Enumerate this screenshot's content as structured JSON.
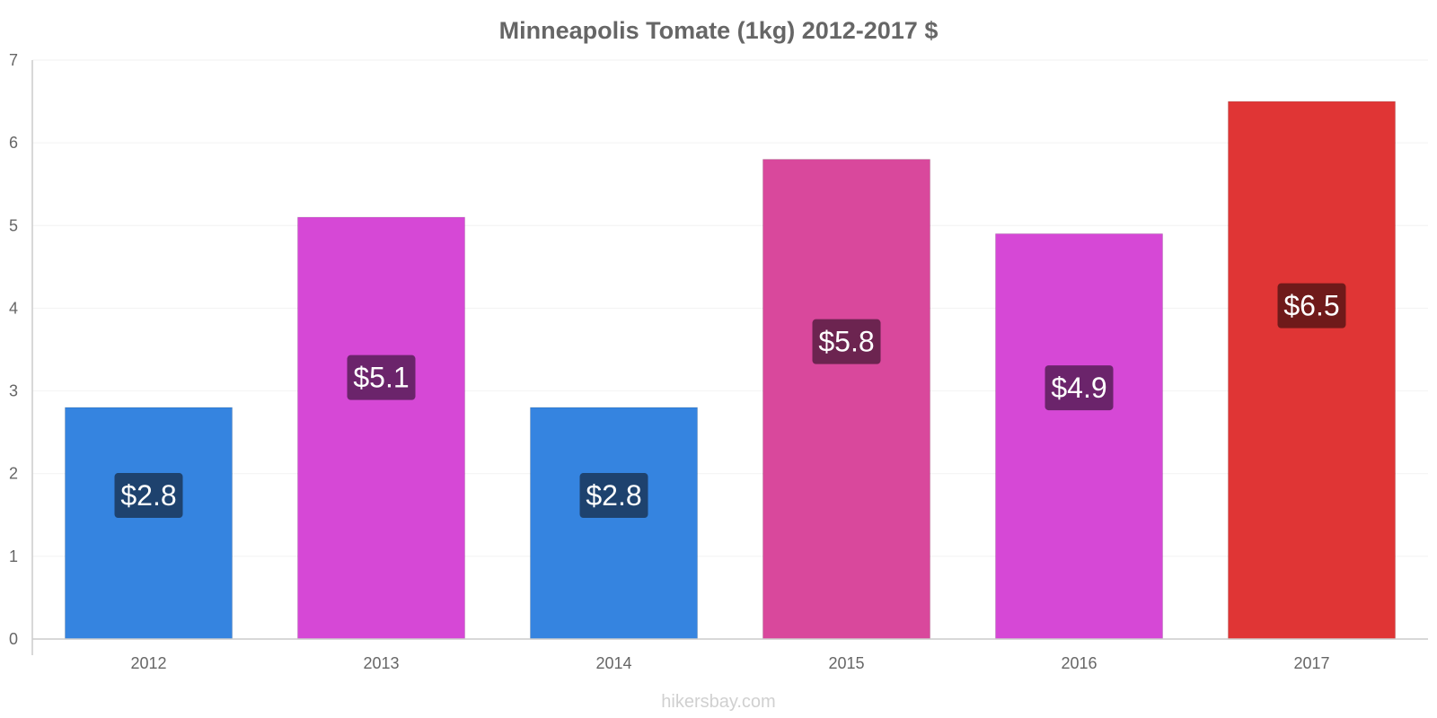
{
  "chart_data": {
    "type": "bar",
    "title": "Minneapolis Tomate (1kg) 2012-2017 $",
    "categories": [
      "2012",
      "2013",
      "2014",
      "2015",
      "2016",
      "2017"
    ],
    "values": [
      2.8,
      5.1,
      2.8,
      5.8,
      4.9,
      6.5
    ],
    "value_labels": [
      "$2.8",
      "$5.1",
      "$2.8",
      "$5.8",
      "$4.9",
      "$6.5"
    ],
    "bar_colors": [
      "#3584e0",
      "#d648d6",
      "#3584e0",
      "#d9489c",
      "#d648d6",
      "#e03535"
    ],
    "label_bg_colors": [
      "#1e426e",
      "#6b246b",
      "#1e426e",
      "#6c2450",
      "#6b246b",
      "#6f1a1a"
    ],
    "y_ticks": [
      "0",
      "1",
      "2",
      "3",
      "4",
      "5",
      "6",
      "7"
    ],
    "ylim": [
      0,
      7
    ],
    "xlabel": "",
    "ylabel": "",
    "grid": true
  },
  "footer": {
    "source": "hikersbay.com"
  }
}
